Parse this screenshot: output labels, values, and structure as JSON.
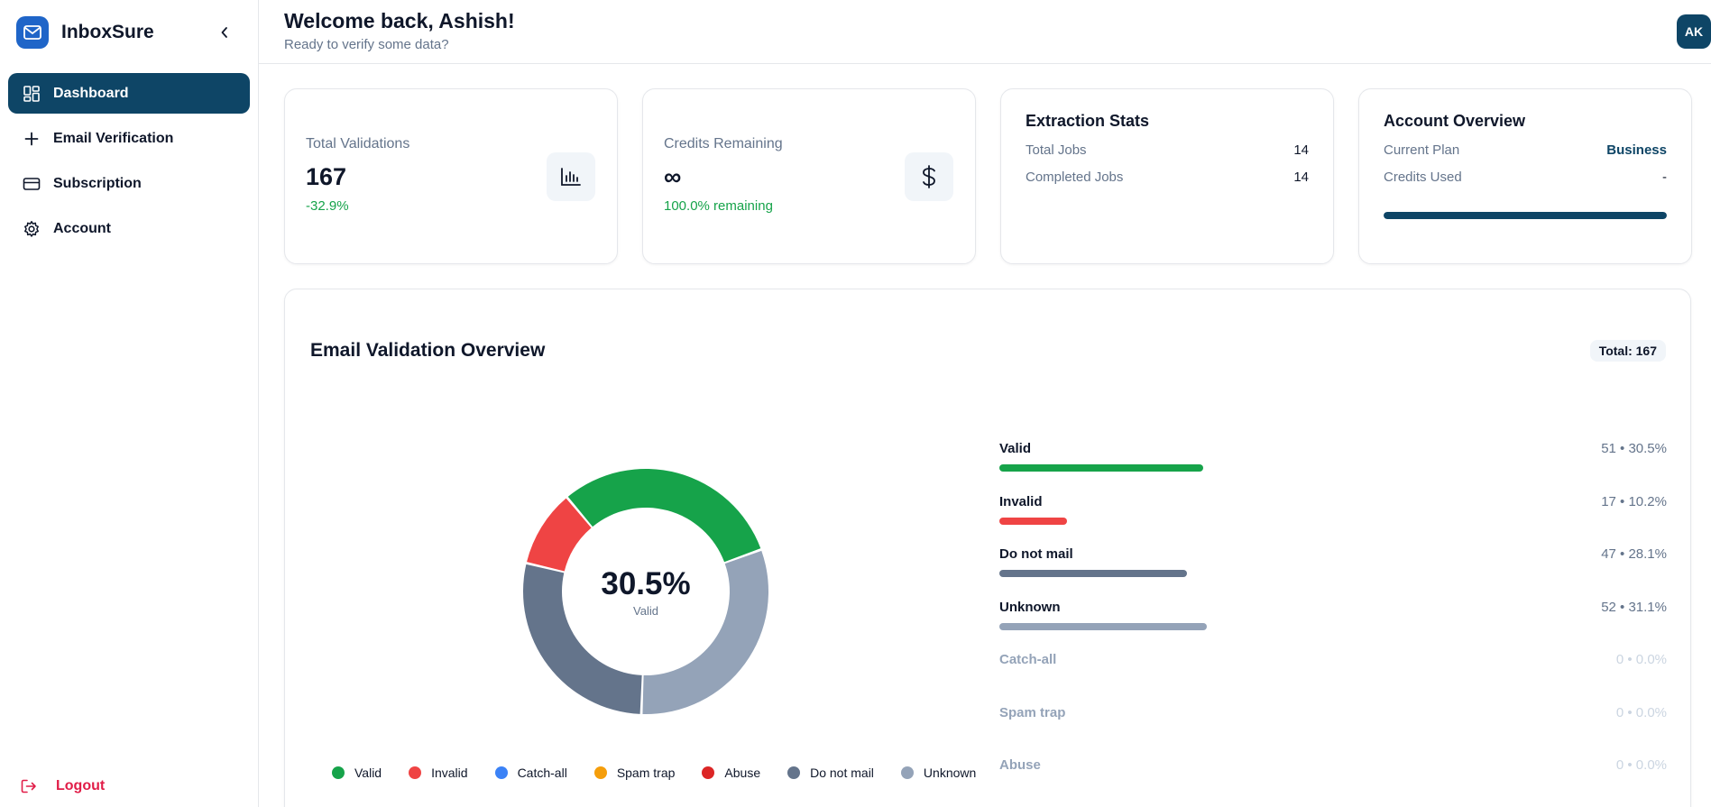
{
  "brand": {
    "name": "InboxSure"
  },
  "sidebar": {
    "items": [
      {
        "label": "Dashboard"
      },
      {
        "label": "Email Verification"
      },
      {
        "label": "Subscription"
      },
      {
        "label": "Account"
      }
    ],
    "logout": "Logout"
  },
  "header": {
    "welcome": "Welcome back, Ashish!",
    "subtitle": "Ready to verify some data?",
    "avatar": "AK"
  },
  "stats": {
    "total_validations": {
      "label": "Total Validations",
      "value": "167",
      "change": "-32.9%",
      "icon": "bar-chart-icon"
    },
    "credits_remaining": {
      "label": "Credits Remaining",
      "value": "∞",
      "change": "100.0% remaining",
      "icon": "dollar-icon"
    }
  },
  "extraction": {
    "title": "Extraction Stats",
    "rows": [
      {
        "label": "Total Jobs",
        "value": "14"
      },
      {
        "label": "Completed Jobs",
        "value": "14"
      }
    ]
  },
  "account": {
    "title": "Account Overview",
    "plan_label": "Current Plan",
    "plan_value": "Business",
    "credits_label": "Credits Used",
    "credits_value": "-",
    "progress": 1.0
  },
  "overview": {
    "title": "Email Validation Overview",
    "total": "Total: 167",
    "center_value": "30.5%",
    "center_label": "Valid",
    "legend": [
      {
        "label": "Valid",
        "color": "#16a34a"
      },
      {
        "label": "Invalid",
        "color": "#ef4444"
      },
      {
        "label": "Catch-all",
        "color": "#3b82f6"
      },
      {
        "label": "Spam trap",
        "color": "#f59e0b"
      },
      {
        "label": "Abuse",
        "color": "#dc2626"
      },
      {
        "label": "Do not mail",
        "color": "#64748b"
      },
      {
        "label": "Unknown",
        "color": "#94a3b8"
      }
    ],
    "breakdown": [
      {
        "label": "Valid",
        "stat": "51 • 30.5%",
        "percent": 30.5,
        "color": "#16a34a"
      },
      {
        "label": "Invalid",
        "stat": "17 • 10.2%",
        "percent": 10.2,
        "color": "#ef4444"
      },
      {
        "label": "Do not mail",
        "stat": "47 • 28.1%",
        "percent": 28.1,
        "color": "#64748b"
      },
      {
        "label": "Unknown",
        "stat": "52 • 31.1%",
        "percent": 31.1,
        "color": "#94a3b8"
      },
      {
        "label": "Catch-all",
        "stat": "0 • 0.0%",
        "percent": 0,
        "color": "#3b82f6"
      },
      {
        "label": "Spam trap",
        "stat": "0 • 0.0%",
        "percent": 0,
        "color": "#f59e0b"
      },
      {
        "label": "Abuse",
        "stat": "0 • 0.0%",
        "percent": 0,
        "color": "#dc2626"
      }
    ]
  },
  "chart_data": {
    "type": "pie",
    "categories": [
      "Valid",
      "Invalid",
      "Catch-all",
      "Spam trap",
      "Abuse",
      "Do not mail",
      "Unknown"
    ],
    "values": [
      51,
      17,
      0,
      0,
      0,
      47,
      52
    ],
    "colors": [
      "#16a34a",
      "#ef4444",
      "#3b82f6",
      "#f59e0b",
      "#dc2626",
      "#64748b",
      "#94a3b8"
    ],
    "donut": true,
    "start_angle_deg": 20,
    "direction": "counterclockwise",
    "legend": "bottom"
  }
}
